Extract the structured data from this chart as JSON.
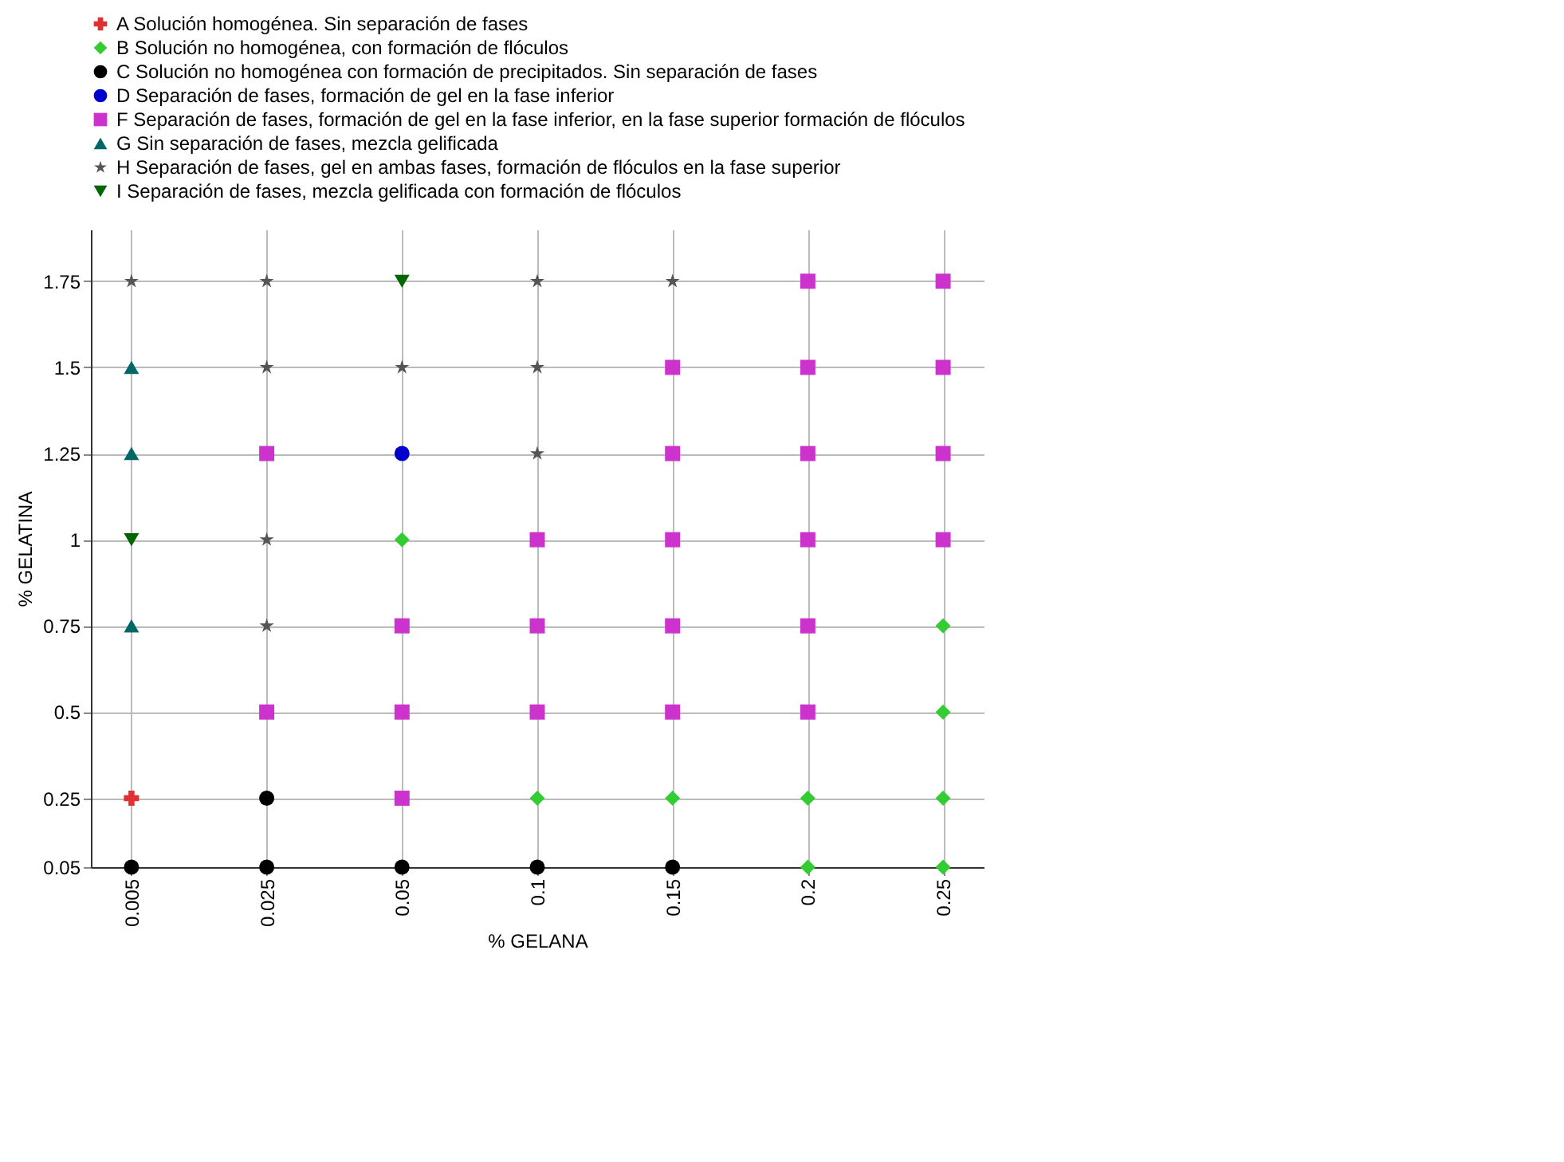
{
  "chart_data": {
    "type": "scatter",
    "xlabel": "% GELANA",
    "ylabel": "% GELATINA",
    "categories": [
      "0.005",
      "0.025",
      "0.05",
      "0.1",
      "0.15",
      "0.2",
      "0.25"
    ],
    "ylim": [
      0.05,
      1.9
    ],
    "yticks": [
      0.05,
      0.25,
      0.5,
      0.75,
      1,
      1.25,
      1.5,
      1.75
    ],
    "grid": true,
    "legend": "top",
    "series": [
      {
        "name": "A  Solución homogénea. Sin separación de fases",
        "color": "#e03030",
        "marker": "cross",
        "x": [
          "0.005"
        ],
        "values": [
          0.25
        ]
      },
      {
        "name": "B  Solución no homogénea, con formación de flóculos",
        "color": "#33cc33",
        "marker": "diamond",
        "x": [
          "0.2",
          "0.25",
          "0.1",
          "0.15",
          "0.2",
          "0.25",
          "0.25",
          "0.25",
          "0.05"
        ],
        "values": [
          0.05,
          0.05,
          0.25,
          0.25,
          0.25,
          0.25,
          0.5,
          0.75,
          1
        ]
      },
      {
        "name": "C  Solución no homogénea con formación de precipitados. Sin separación de fases",
        "color": "#000000",
        "marker": "circle",
        "x": [
          "0.005",
          "0.025",
          "0.05",
          "0.1",
          "0.15",
          "0.025"
        ],
        "values": [
          0.05,
          0.05,
          0.05,
          0.05,
          0.05,
          0.25
        ]
      },
      {
        "name": "D  Separación de fases, formación de gel en la fase inferior",
        "color": "#0000cc",
        "marker": "circle",
        "x": [
          "0.05"
        ],
        "values": [
          1.25
        ]
      },
      {
        "name": "F  Separación de fases, formación de gel en la fase inferior, en la fase superior formación de flóculos",
        "color": "#cc33cc",
        "marker": "square",
        "x": [
          "0.05",
          "0.025",
          "0.05",
          "0.1",
          "0.15",
          "0.2",
          "0.05",
          "0.1",
          "0.15",
          "0.2",
          "0.1",
          "0.15",
          "0.2",
          "0.25",
          "0.025",
          "0.15",
          "0.2",
          "0.25",
          "0.15",
          "0.2",
          "0.25",
          "0.2",
          "0.25"
        ],
        "values": [
          0.25,
          0.5,
          0.5,
          0.5,
          0.5,
          0.5,
          0.75,
          0.75,
          0.75,
          0.75,
          1,
          1,
          1,
          1,
          1.25,
          1.25,
          1.25,
          1.25,
          1.5,
          1.5,
          1.5,
          1.75,
          1.75
        ]
      },
      {
        "name": "G  Sin separación de fases, mezcla gelificada",
        "color": "#006666",
        "marker": "triangle",
        "x": [
          "0.005",
          "0.005",
          "0.005"
        ],
        "values": [
          0.75,
          1.25,
          1.5
        ]
      },
      {
        "name": "H  Separación de fases, gel en ambas fases, formación de flóculos en la fase superior",
        "color": "#555555",
        "marker": "star",
        "x": [
          "0.025",
          "0.025",
          "0.1",
          "0.025",
          "0.05",
          "0.1",
          "0.005",
          "0.025",
          "0.1",
          "0.15"
        ],
        "values": [
          0.75,
          1,
          1.25,
          1.5,
          1.5,
          1.5,
          1.75,
          1.75,
          1.75,
          1.75
        ]
      },
      {
        "name": "I  Separación de fases, mezcla gelificada con formación de flóculos",
        "color": "#006600",
        "marker": "triangle-down",
        "x": [
          "0.005",
          "0.05"
        ],
        "values": [
          1,
          1.75
        ]
      }
    ]
  }
}
